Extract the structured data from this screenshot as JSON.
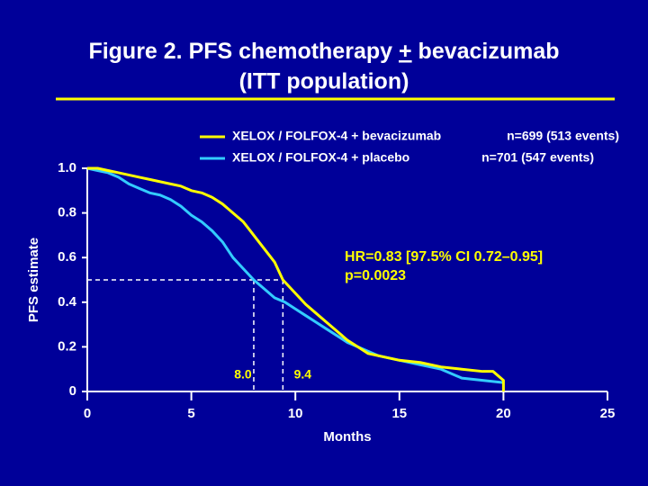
{
  "chart_data": {
    "type": "line",
    "title": [
      "Figure 2. PFS chemotherapy",
      "+",
      "bevacizumab",
      "(ITT population)"
    ],
    "xlabel": "Months",
    "ylabel": "PFS estimate",
    "xlim": [
      0,
      25
    ],
    "ylim": [
      0,
      1
    ],
    "xticks": [
      0,
      5,
      10,
      15,
      20,
      25
    ],
    "yticks": [
      0,
      {
        "value": 0.2,
        "label": "0.2"
      },
      {
        "value": 0.4,
        "label": "0.4"
      },
      {
        "value": 0.6,
        "label": "0.6"
      },
      {
        "value": 0.8,
        "label": "0.8"
      },
      {
        "value": 1,
        "label": "1.0"
      }
    ],
    "series": [
      {
        "name": "XELOX / FOLFOX-4 + bevacizumab",
        "n_label": "n=699 (513 events)",
        "color": "#ffff00",
        "x": [
          0,
          0.5,
          1,
          1.5,
          2,
          2.5,
          3,
          3.5,
          4,
          4.5,
          5,
          5.5,
          6,
          6.5,
          7,
          7.5,
          8,
          8.5,
          9,
          9.4,
          10,
          10.5,
          11,
          11.5,
          12,
          12.5,
          13,
          13.5,
          14,
          14.5,
          15,
          16,
          17,
          18,
          19,
          19.5,
          20,
          20
        ],
        "values": [
          1,
          1,
          0.99,
          0.98,
          0.97,
          0.96,
          0.95,
          0.94,
          0.93,
          0.92,
          0.9,
          0.89,
          0.87,
          0.84,
          0.8,
          0.76,
          0.7,
          0.64,
          0.58,
          0.5,
          0.44,
          0.39,
          0.35,
          0.31,
          0.27,
          0.23,
          0.2,
          0.17,
          0.16,
          0.15,
          0.14,
          0.13,
          0.11,
          0.1,
          0.09,
          0.09,
          0.05,
          0
        ]
      },
      {
        "name": "XELOX / FOLFOX-4 + placebo",
        "n_label": "n=701 (547 events)",
        "color": "#33ccff",
        "x": [
          0,
          0.5,
          1,
          1.5,
          2,
          2.5,
          3,
          3.5,
          4,
          4.5,
          5,
          5.5,
          6,
          6.5,
          7,
          7.5,
          8,
          8.5,
          9,
          9.5,
          10,
          10.5,
          11,
          11.5,
          12,
          12.5,
          13,
          13.5,
          14,
          14.5,
          15,
          16,
          17,
          18,
          19,
          20
        ],
        "values": [
          1,
          0.99,
          0.98,
          0.96,
          0.93,
          0.91,
          0.89,
          0.88,
          0.86,
          0.83,
          0.79,
          0.76,
          0.72,
          0.67,
          0.6,
          0.55,
          0.5,
          0.46,
          0.42,
          0.4,
          0.37,
          0.34,
          0.31,
          0.28,
          0.25,
          0.22,
          0.2,
          0.18,
          0.16,
          0.15,
          0.14,
          0.12,
          0.1,
          0.06,
          0.05,
          0.04
        ]
      }
    ],
    "hr_text": [
      "HR=0.83 [97.5% CI 0.72–0.95]",
      "p=0.0023"
    ],
    "median_y": 0.5,
    "medians": [
      {
        "value": 8.0,
        "label": "8.0"
      },
      {
        "value": 9.4,
        "label": "9.4"
      }
    ]
  }
}
